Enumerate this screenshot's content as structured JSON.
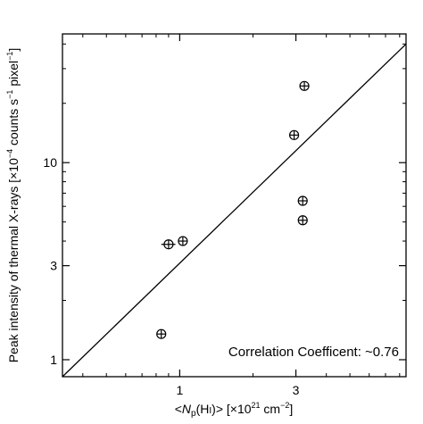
{
  "chart_data": {
    "type": "scatter",
    "x_scale": "log",
    "y_scale": "log",
    "xlim": [
      0.33,
      8.5
    ],
    "ylim": [
      0.82,
      45
    ],
    "x_ticks": [
      {
        "value": 1,
        "label": "1"
      },
      {
        "value": 3,
        "label": "3"
      }
    ],
    "y_ticks": [
      {
        "value": 1,
        "label": "1"
      },
      {
        "value": 3,
        "label": "3"
      },
      {
        "value": 10,
        "label": "10"
      }
    ],
    "x_minor_ticks": [
      0.4,
      0.5,
      0.6,
      0.7,
      0.8,
      0.9,
      2,
      4,
      5,
      6,
      7,
      8
    ],
    "y_minor_ticks": [
      2,
      4,
      5,
      6,
      7,
      8,
      9,
      20,
      30,
      40
    ],
    "xlabel": "<Np(HI)> [×10²¹ cm⁻²]",
    "ylabel": "Peak intensity of thermal X-rays [×10⁻⁴ counts s⁻¹ pixel⁻¹]",
    "points": [
      {
        "x": 0.84,
        "y": 1.35,
        "xerr": 0.03,
        "yerr": 0.03
      },
      {
        "x": 0.9,
        "y": 3.85,
        "xerr": 0.06,
        "yerr": 0.05
      },
      {
        "x": 1.03,
        "y": 4.0,
        "xerr": 0.03,
        "yerr": 0.05
      },
      {
        "x": 2.95,
        "y": 13.8,
        "xerr": 0.05,
        "yerr": 0.2
      },
      {
        "x": 3.25,
        "y": 24.5,
        "xerr": 0.05,
        "yerr": 0.3
      },
      {
        "x": 3.2,
        "y": 6.4,
        "xerr": 0.05,
        "yerr": 0.1
      },
      {
        "x": 3.2,
        "y": 5.1,
        "xerr": 0.05,
        "yerr": 0.1
      }
    ],
    "fit_line": {
      "x": [
        0.33,
        8.5
      ],
      "y": [
        0.82,
        40
      ]
    },
    "annotation": "Correlation Coefficent: ~0.76",
    "grid": false,
    "grid_note": "no gridlines; ticks on all four sides"
  }
}
